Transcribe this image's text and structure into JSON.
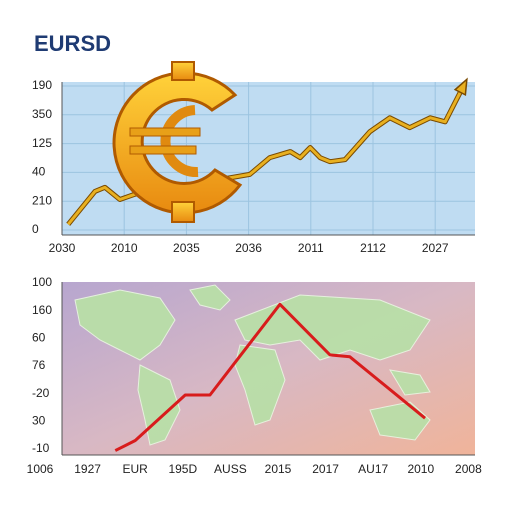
{
  "chart_data": [
    {
      "type": "line",
      "title": "EURSD",
      "y_labels": [
        "190",
        "350",
        "125",
        "40",
        "210",
        "0"
      ],
      "x_labels": [
        "2030",
        "2010",
        "2035",
        "2036",
        "2011",
        "2112",
        "2027"
      ],
      "x": [
        0.1,
        0.53,
        0.69,
        0.93,
        1.17,
        3.02,
        3.34,
        3.67,
        3.83,
        3.99,
        4.15,
        4.31,
        4.55,
        4.95,
        5.27,
        5.59,
        5.92,
        6.16,
        6.48
      ],
      "values": [
        0.17,
        1.31,
        1.45,
        1.03,
        1.21,
        1.9,
        2.48,
        2.69,
        2.48,
        2.83,
        2.48,
        2.34,
        2.41,
        3.38,
        3.86,
        3.52,
        3.86,
        3.72,
        5.07
      ],
      "color": "#e8b020",
      "xlim": [
        0,
        6.64
      ],
      "ylim": [
        -0.2,
        5.1
      ],
      "grid": true
    },
    {
      "type": "line",
      "y_labels": [
        "100",
        "160",
        "60",
        "76",
        "-20",
        "30",
        "-10"
      ],
      "x_labels": [
        "1006",
        "1927",
        "EUR",
        "195D",
        "AUSS",
        "2015",
        "2017",
        "AU17",
        "2010",
        "2008"
      ],
      "x": [
        1.58,
        2.0,
        3.05,
        3.57,
        5.04,
        6.09,
        6.51,
        8.09
      ],
      "values": [
        -0.04,
        0.32,
        1.95,
        1.95,
        5.2,
        3.39,
        3.32,
        1.12
      ],
      "color": "#d81c1c",
      "xlim": [
        0.46,
        9.14
      ],
      "ylim": [
        -0.2,
        6.0
      ],
      "grid": false
    }
  ]
}
